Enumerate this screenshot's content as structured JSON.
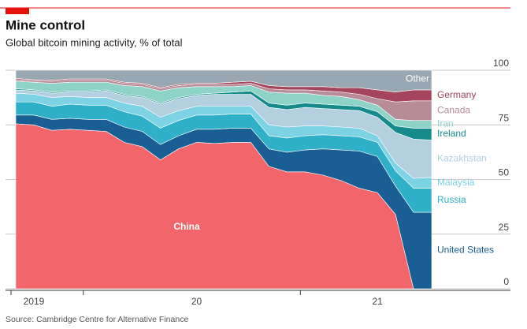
{
  "chart_data": {
    "type": "stacked_area",
    "title": "Mine control",
    "subtitle": "Global bitcoin mining activity, % of total",
    "source": "Source: Cambridge Centre for Alternative Finance",
    "categories": [
      null,
      "2019",
      null,
      null,
      null,
      null,
      null,
      null,
      null,
      null,
      "20",
      null,
      null,
      null,
      null,
      null,
      null,
      null,
      null,
      null,
      "21",
      null,
      null,
      null
    ],
    "ylim": [
      0,
      100
    ],
    "yticks": [
      0,
      25,
      50,
      75,
      100
    ],
    "grid": true,
    "series": [
      {
        "name": "China",
        "color": "#f2656b",
        "values": [
          75.5,
          75,
          72.5,
          73,
          72.5,
          72,
          67,
          65,
          59,
          64,
          67,
          66.5,
          67,
          67,
          56,
          53.5,
          53.5,
          52,
          49.5,
          46,
          44,
          34,
          0,
          0
        ]
      },
      {
        "name": "United States",
        "color": "#1a5f93",
        "values": [
          4,
          4.5,
          5,
          5,
          5,
          5.5,
          7,
          7,
          7,
          6,
          6,
          6.5,
          6.5,
          6.5,
          8,
          9,
          10,
          12,
          14,
          17,
          16.5,
          13,
          35,
          35
        ]
      },
      {
        "name": "Russia",
        "color": "#2fb0c8",
        "values": [
          6,
          6,
          6,
          6.5,
          6.5,
          6.5,
          7,
          7,
          7.5,
          7,
          6.5,
          6.5,
          6.5,
          6.5,
          6,
          6.5,
          6.5,
          6.5,
          6.5,
          6.5,
          6.5,
          7,
          11,
          11
        ]
      },
      {
        "name": "Malaysia",
        "color": "#7dd2e4",
        "values": [
          4,
          3.5,
          4,
          3.5,
          3.5,
          3.5,
          4,
          4.5,
          5,
          4.5,
          4,
          4,
          3.5,
          3.5,
          5,
          5,
          4.5,
          4,
          4,
          4,
          3,
          3.5,
          4.5,
          5
        ]
      },
      {
        "name": "Kazakhstan",
        "color": "#b4cfe0",
        "values": [
          1.5,
          1.5,
          2,
          2,
          2.5,
          3,
          3.5,
          4,
          6,
          5.5,
          5,
          5.5,
          5.5,
          5.5,
          8,
          8,
          8.5,
          8,
          8,
          8,
          8.5,
          14,
          18,
          17
        ]
      },
      {
        "name": "Ireland",
        "color": "#178b8b",
        "values": [
          0.5,
          0.5,
          0.5,
          0.5,
          0.5,
          0.5,
          0.5,
          0.5,
          0.5,
          0.5,
          0.5,
          0.5,
          1,
          1.5,
          2,
          2,
          2,
          2,
          2,
          2,
          2.5,
          3,
          5,
          5.5
        ]
      },
      {
        "name": "Iran",
        "color": "#8ed3c7",
        "values": [
          3.5,
          3.5,
          4,
          4,
          4,
          3.5,
          4,
          4.5,
          5.5,
          4.5,
          3.5,
          3,
          2.5,
          2.5,
          5,
          5.5,
          4.5,
          4,
          4,
          3,
          3,
          3,
          3.5,
          3.5
        ]
      },
      {
        "name": "Canada",
        "color": "#b78c98",
        "values": [
          0.7,
          0.7,
          1,
          1,
          1,
          1,
          1,
          1,
          1,
          1,
          1,
          1,
          1,
          1,
          1.5,
          1.5,
          1.5,
          2,
          2,
          2.5,
          3,
          8,
          9,
          9
        ]
      },
      {
        "name": "Germany",
        "color": "#a4455d",
        "values": [
          0.5,
          0.5,
          0.5,
          0.5,
          0.5,
          0.5,
          0.5,
          0.5,
          0.5,
          0.5,
          0.5,
          0.5,
          1,
          1,
          1.5,
          1.5,
          1.5,
          2,
          2,
          3,
          4,
          4.5,
          5,
          5
        ]
      },
      {
        "name": "Other",
        "color": "#98a7b1",
        "values": [
          3.8,
          4.3,
          4.5,
          4,
          4,
          4,
          5.5,
          6,
          8,
          6.5,
          6,
          6,
          5.5,
          5,
          7,
          7.5,
          7.5,
          7.5,
          8,
          8,
          9,
          10,
          9,
          9
        ]
      }
    ]
  }
}
